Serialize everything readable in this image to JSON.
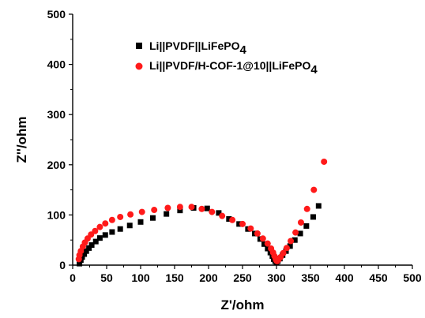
{
  "chart_data": {
    "type": "scatter",
    "xlabel": "Z'/ohm",
    "ylabel": "Z''/ohm",
    "xlim": [
      0,
      500
    ],
    "ylim": [
      0,
      500
    ],
    "xticks": [
      0,
      50,
      100,
      150,
      200,
      250,
      300,
      350,
      400,
      450,
      500
    ],
    "yticks": [
      0,
      100,
      200,
      300,
      400,
      500
    ],
    "grid": false,
    "legend": "top-left",
    "series": [
      {
        "name_parts": {
          "main": "Li||PVDF||LiFePO",
          "sub": "4"
        },
        "marker": "square",
        "color": "#000000",
        "x": [
          10,
          12,
          14,
          17,
          20,
          24,
          28,
          34,
          40,
          48,
          58,
          70,
          84,
          100,
          118,
          138,
          158,
          178,
          198,
          215,
          230,
          245,
          258,
          268,
          276,
          282,
          287,
          291,
          294,
          296,
          298,
          300,
          302,
          305,
          309,
          314,
          320,
          327,
          335,
          344,
          354,
          362
        ],
        "y": [
          3,
          10,
          16,
          22,
          28,
          34,
          40,
          47,
          54,
          60,
          66,
          72,
          79,
          86,
          94,
          102,
          109,
          114,
          113,
          104,
          92,
          82,
          72,
          63,
          52,
          42,
          33,
          25,
          18,
          12,
          8,
          6,
          8,
          13,
          20,
          28,
          38,
          50,
          63,
          78,
          96,
          118
        ]
      },
      {
        "name_parts": {
          "main": "Li||PVDF/H-COF-1@10||LiFePO",
          "sub": "4"
        },
        "marker": "circle",
        "color": "#ff1a1a",
        "x": [
          9,
          10,
          12,
          15,
          18,
          22,
          27,
          33,
          40,
          48,
          58,
          70,
          85,
          102,
          120,
          140,
          158,
          175,
          190,
          205,
          220,
          235,
          250,
          262,
          272,
          280,
          287,
          292,
          295,
          297,
          299,
          300,
          301,
          303,
          306,
          310,
          315,
          321,
          328,
          336,
          345,
          355,
          370
        ],
        "y": [
          12,
          20,
          28,
          37,
          45,
          53,
          61,
          68,
          76,
          83,
          90,
          96,
          101,
          106,
          110,
          114,
          116,
          116,
          112,
          106,
          98,
          90,
          82,
          73,
          63,
          53,
          43,
          33,
          25,
          18,
          12,
          9,
          8,
          11,
          16,
          24,
          34,
          48,
          65,
          85,
          112,
          150,
          206
        ]
      }
    ]
  }
}
